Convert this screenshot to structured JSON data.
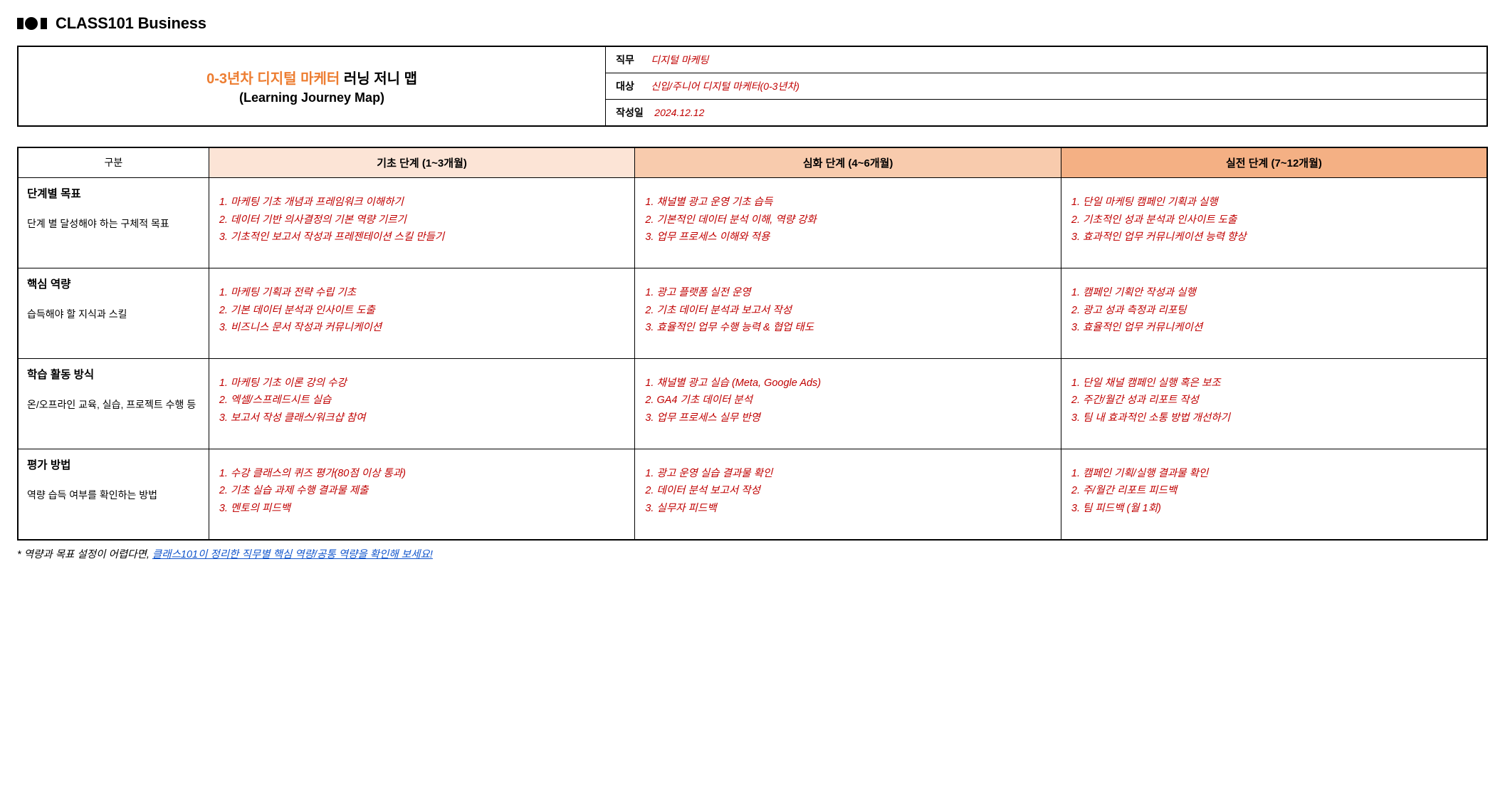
{
  "brand": {
    "text": "CLASS101 Business"
  },
  "header": {
    "title_highlight": "0-3년차 디지털 마케터",
    "title_rest": " 러닝 저니 맵",
    "subtitle": "(Learning Journey Map)",
    "meta": {
      "job_label": "직무",
      "job_value": "디지털 마케팅",
      "target_label": "대상",
      "target_value": "신입/주니어 디지털 마케터(0-3년차)",
      "date_label": "작성일",
      "date_value": "2024.12.12"
    }
  },
  "colors": {
    "stage1_bg": "#fce4d6",
    "stage2_bg": "#f8cbad",
    "stage3_bg": "#f4b084",
    "accent_text": "#c00000",
    "title_accent": "#ed7d31",
    "link": "#1155cc"
  },
  "columns": {
    "gubun": "구분",
    "stage1": "기초 단계 (1~3개월)",
    "stage2": "심화 단계 (4~6개월)",
    "stage3": "실전 단계 (7~12개월)"
  },
  "rows": [
    {
      "title": "단계별 목표",
      "sub": "단계 별 달성해야 하는 구체적 목표",
      "stage1": "1. 마케팅 기초 개념과 프레임워크 이해하기\n2. 데이터 기반 의사결정의 기본 역량 기르기\n3. 기초적인 보고서 작성과 프레젠테이션 스킬 만들기",
      "stage2": "1. 채널별 광고 운영 기초 습득\n2. 기본적인 데이터 분석 이해, 역량 강화\n3. 업무 프로세스 이해와 적용",
      "stage3": "1. 단일 마케팅 캠페인 기획과 실행\n2. 기초적인 성과 분석과 인사이트 도출\n3. 효과적인 업무 커뮤니케이션 능력 향상"
    },
    {
      "title": "핵심 역량",
      "sub": "습득해야 할 지식과 스킬",
      "stage1": "1. 마케팅 기획과 전략 수립 기초\n2. 기본 데이터 분석과 인사이트 도출\n3. 비즈니스 문서 작성과 커뮤니케이션",
      "stage2": "1. 광고 플랫폼 실전 운영\n2. 기초 데이터 분석과 보고서 작성\n3. 효율적인 업무 수행 능력 & 협업 태도",
      "stage3": "1. 캠페인 기획안 작성과 실행\n2. 광고 성과 측정과 리포팅\n3. 효율적인 업무 커뮤니케이션"
    },
    {
      "title": "학습 활동 방식",
      "sub": "온/오프라인 교육, 실습, 프로젝트 수행 등",
      "stage1": "1. 마케팅 기초 이론 강의 수강\n2. 엑셀/스프레드시트 실습\n3. 보고서 작성 클래스/워크샵 참여",
      "stage2": "1. 채널별 광고 실습 (Meta, Google Ads)\n2. GA4 기초 데이터 분석\n3. 업무 프로세스 실무 반영",
      "stage3": "1. 단일 채널 캠페인 실행 혹은 보조\n2. 주간/월간 성과 리포트 작성\n3. 팀 내 효과적인 소통 방법 개선하기"
    },
    {
      "title": "평가 방법",
      "sub": "역량 습득 여부를 확인하는 방법",
      "stage1": "1. 수강 클래스의 퀴즈 평가(80점 이상 통과)\n2. 기초 실습 과제 수행 결과물 제출\n3. 멘토의 피드백",
      "stage2": "1. 광고 운영 실습 결과물 확인\n2. 데이터 분석 보고서 작성\n3. 실무자 피드백",
      "stage3": "1. 캠페인 기획/실행 결과물 확인\n2. 주/월간 리포트 피드백\n3. 팀 피드백 (월 1회)"
    }
  ],
  "footnote": {
    "prefix": "* 역량과 목표 설정이 어렵다면, ",
    "link_text": "클래스101이 정리한 직무별 핵심 역량/공통 역량을 확인해 보세요!"
  }
}
